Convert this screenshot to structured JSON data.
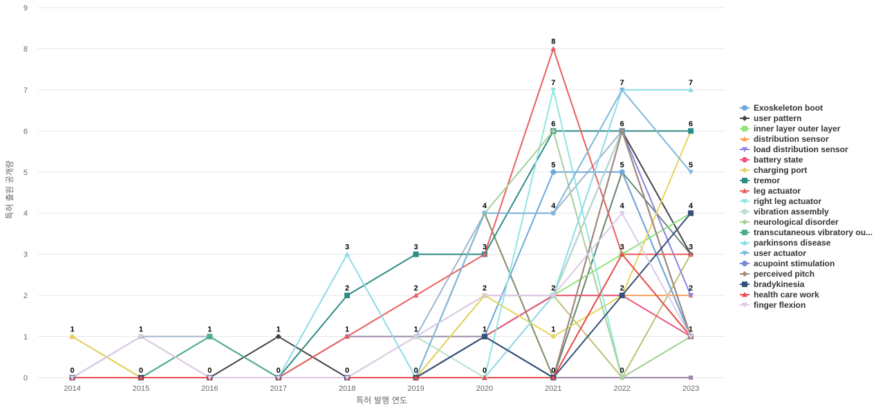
{
  "chart_data": {
    "type": "line",
    "xlabel": "특허 발행 연도",
    "ylabel": "특허 출원 공개량",
    "ylim": [
      0,
      9
    ],
    "yticks": [
      0,
      1,
      2,
      3,
      4,
      5,
      6,
      7,
      8,
      9
    ],
    "categories": [
      "2014",
      "2015",
      "2016",
      "2017",
      "2018",
      "2019",
      "2020",
      "2021",
      "2022",
      "2023"
    ],
    "grid": true,
    "legend_position": "right",
    "series": [
      {
        "name": "Exoskeleton boot",
        "color": "#6fa8dc",
        "marker": "circle",
        "values": [
          0,
          0,
          0,
          0,
          0,
          0,
          1,
          5,
          5,
          1
        ]
      },
      {
        "name": "user pattern",
        "color": "#434343",
        "marker": "diamond",
        "values": [
          0,
          0,
          0,
          1,
          0,
          0,
          1,
          2,
          6,
          3
        ]
      },
      {
        "name": "inner layer outer layer",
        "color": "#93e47a",
        "marker": "square",
        "values": [
          0,
          0,
          0,
          0,
          0,
          0,
          1,
          2,
          3,
          4
        ]
      },
      {
        "name": "distribution sensor",
        "color": "#f6a25a",
        "marker": "triangle",
        "values": [
          1,
          0,
          0,
          0,
          0,
          0,
          1,
          2,
          2,
          2
        ]
      },
      {
        "name": "load distribution sensor",
        "color": "#8a82e0",
        "marker": "triangle-down",
        "values": [
          0,
          0,
          0,
          0,
          0,
          0,
          1,
          2,
          6,
          2
        ]
      },
      {
        "name": "battery state",
        "color": "#e8567a",
        "marker": "circle",
        "values": [
          0,
          0,
          0,
          0,
          0,
          0,
          1,
          2,
          2,
          1
        ]
      },
      {
        "name": "charging port",
        "color": "#e4d45a",
        "marker": "diamond",
        "values": [
          1,
          0,
          0,
          0,
          0,
          0,
          2,
          1,
          2,
          6
        ]
      },
      {
        "name": "tremor",
        "color": "#2e8b84",
        "marker": "square",
        "values": [
          0,
          0,
          0,
          0,
          2,
          3,
          3,
          6,
          6,
          6
        ]
      },
      {
        "name": "leg actuator",
        "color": "#e85f5f",
        "marker": "triangle",
        "values": [
          0,
          0,
          0,
          0,
          1,
          2,
          3,
          8,
          3,
          3
        ]
      },
      {
        "name": "right leg actuator",
        "color": "#8ee6e0",
        "marker": "triangle-down",
        "values": [
          0,
          0,
          0,
          0,
          0,
          0,
          0,
          7,
          0,
          1
        ]
      },
      {
        "name": "vibration assembly",
        "color": "#b9e0cc",
        "marker": "circle",
        "values": [
          0,
          0,
          0,
          0,
          0,
          1,
          0,
          2,
          6,
          1
        ]
      },
      {
        "name": "neurological disorder",
        "color": "#a9cf98",
        "marker": "diamond",
        "values": [
          0,
          0,
          1,
          0,
          0,
          0,
          4,
          6,
          0,
          1
        ]
      },
      {
        "name": "transcutaneous vibratory ou...",
        "color": "#4daa94",
        "marker": "square",
        "values": [
          0,
          0,
          1,
          0,
          0,
          0,
          1,
          0,
          6,
          1
        ]
      },
      {
        "name": "parkinsons disease",
        "color": "#8fd9ea",
        "marker": "triangle",
        "values": [
          0,
          0,
          0,
          0,
          3,
          0,
          0,
          2,
          7,
          7
        ]
      },
      {
        "name": "user actuator",
        "color": "#7eb6dc",
        "marker": "triangle-down",
        "values": [
          0,
          0,
          0,
          0,
          0,
          0,
          4,
          4,
          7,
          5
        ]
      },
      {
        "name": "acupoint stimulation",
        "color": "#7a88d6",
        "marker": "circle",
        "values": [
          0,
          0,
          0,
          0,
          0,
          0,
          1,
          0,
          6,
          1
        ]
      },
      {
        "name": "perceived pitch",
        "color": "#a78878",
        "marker": "diamond",
        "values": [
          0,
          0,
          0,
          0,
          0,
          0,
          1,
          0,
          6,
          1
        ]
      },
      {
        "name": "bradykinesia",
        "color": "#34507a",
        "marker": "square",
        "values": [
          0,
          0,
          0,
          0,
          0,
          0,
          1,
          0,
          2,
          4
        ]
      },
      {
        "name": "health care work",
        "color": "#e84848",
        "marker": "triangle",
        "values": [
          0,
          0,
          0,
          0,
          0,
          0,
          0,
          0,
          3,
          1
        ]
      },
      {
        "name": "finger flexion",
        "color": "#dcc9e6",
        "marker": "triangle-down",
        "values": [
          0,
          1,
          0,
          0,
          0,
          1,
          2,
          2,
          4,
          1
        ]
      }
    ],
    "extra_lines": [
      {
        "color": "#c9a4a4",
        "values": [
          0,
          1,
          0,
          0,
          0,
          0,
          0,
          0,
          0,
          0
        ]
      },
      {
        "color": "#a0b5cf",
        "values": [
          0,
          1,
          1,
          0,
          1,
          1,
          4,
          4,
          6,
          1
        ]
      },
      {
        "color": "#b8b86a",
        "values": [
          0,
          0,
          1,
          0,
          0,
          0,
          0,
          0,
          0,
          0
        ]
      },
      {
        "color": "#9a87a3",
        "values": [
          0,
          0,
          0,
          0,
          1,
          1,
          1,
          0,
          0,
          0
        ]
      },
      {
        "color": "#bdbdbd",
        "values": [
          0,
          0,
          0,
          0,
          0,
          1,
          2,
          2,
          6,
          1
        ]
      },
      {
        "color": "#7f8a63",
        "values": [
          0,
          0,
          0,
          0,
          0,
          0,
          4,
          0,
          5,
          1
        ]
      },
      {
        "color": "#6d8a7a",
        "values": [
          0,
          0,
          0,
          0,
          0,
          0,
          0,
          0,
          5,
          3
        ]
      },
      {
        "color": "#bfbf7a",
        "values": [
          0,
          0,
          0,
          0,
          0,
          0,
          2,
          2,
          0,
          3
        ]
      }
    ],
    "data_labels": [
      {
        "x": "2014",
        "y": 1,
        "text": "1"
      },
      {
        "x": "2014",
        "y": 0,
        "text": "0"
      },
      {
        "x": "2015",
        "y": 1,
        "text": "1"
      },
      {
        "x": "2015",
        "y": 0,
        "text": "0"
      },
      {
        "x": "2016",
        "y": 1,
        "text": "1"
      },
      {
        "x": "2016",
        "y": 0,
        "text": "0"
      },
      {
        "x": "2017",
        "y": 1,
        "text": "1"
      },
      {
        "x": "2017",
        "y": 0,
        "text": "0"
      },
      {
        "x": "2018",
        "y": 3,
        "text": "3"
      },
      {
        "x": "2018",
        "y": 2,
        "text": "2"
      },
      {
        "x": "2018",
        "y": 1,
        "text": "1"
      },
      {
        "x": "2018",
        "y": 0,
        "text": "0"
      },
      {
        "x": "2019",
        "y": 3,
        "text": "3"
      },
      {
        "x": "2019",
        "y": 2,
        "text": "2"
      },
      {
        "x": "2019",
        "y": 1,
        "text": "1"
      },
      {
        "x": "2019",
        "y": 0,
        "text": "0"
      },
      {
        "x": "2020",
        "y": 4,
        "text": "4"
      },
      {
        "x": "2020",
        "y": 3,
        "text": "3"
      },
      {
        "x": "2020",
        "y": 2,
        "text": "2"
      },
      {
        "x": "2020",
        "y": 1,
        "text": "1"
      },
      {
        "x": "2020",
        "y": 0,
        "text": "0"
      },
      {
        "x": "2021",
        "y": 8,
        "text": "8"
      },
      {
        "x": "2021",
        "y": 7,
        "text": "7"
      },
      {
        "x": "2021",
        "y": 6,
        "text": "6"
      },
      {
        "x": "2021",
        "y": 5,
        "text": "5"
      },
      {
        "x": "2021",
        "y": 4,
        "text": "4"
      },
      {
        "x": "2021",
        "y": 2,
        "text": "2"
      },
      {
        "x": "2021",
        "y": 1,
        "text": "1"
      },
      {
        "x": "2021",
        "y": 0,
        "text": "0"
      },
      {
        "x": "2022",
        "y": 7,
        "text": "7"
      },
      {
        "x": "2022",
        "y": 6,
        "text": "6"
      },
      {
        "x": "2022",
        "y": 5,
        "text": "5"
      },
      {
        "x": "2022",
        "y": 4,
        "text": "4"
      },
      {
        "x": "2022",
        "y": 3,
        "text": "3"
      },
      {
        "x": "2022",
        "y": 2,
        "text": "2"
      },
      {
        "x": "2022",
        "y": 0,
        "text": "0"
      },
      {
        "x": "2023",
        "y": 7,
        "text": "7"
      },
      {
        "x": "2023",
        "y": 6,
        "text": "6"
      },
      {
        "x": "2023",
        "y": 5,
        "text": "5"
      },
      {
        "x": "2023",
        "y": 4,
        "text": "4"
      },
      {
        "x": "2023",
        "y": 3,
        "text": "3"
      },
      {
        "x": "2023",
        "y": 2,
        "text": "2"
      },
      {
        "x": "2023",
        "y": 1,
        "text": "1"
      }
    ]
  }
}
